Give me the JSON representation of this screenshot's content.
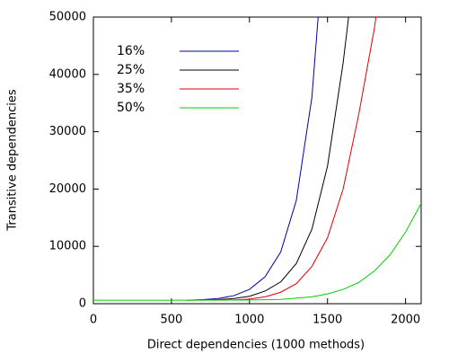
{
  "chart_data": {
    "type": "line",
    "xlabel": "Direct dependencies (1000 methods)",
    "ylabel": "Transitive dependencies",
    "xlim": [
      0,
      2100
    ],
    "xticks": [
      0,
      500,
      1000,
      1500,
      2000
    ],
    "ylim": [
      0,
      50000
    ],
    "yticks": [
      0,
      10000,
      20000,
      30000,
      40000,
      50000
    ],
    "legend": "upper-left",
    "series": [
      {
        "name": "16%",
        "color": "#0000a0",
        "x": [
          600,
          700,
          800,
          900,
          1000,
          1100,
          1200,
          1300,
          1400,
          1440
        ],
        "values": [
          600,
          700,
          900,
          1400,
          2500,
          4700,
          9000,
          18000,
          36000,
          50000
        ]
      },
      {
        "name": "25%",
        "color": "#000000",
        "x": [
          600,
          800,
          900,
          1000,
          1100,
          1200,
          1300,
          1400,
          1500,
          1600,
          1635
        ],
        "values": [
          600,
          700,
          900,
          1300,
          2200,
          3800,
          7000,
          13000,
          24000,
          42000,
          50000
        ]
      },
      {
        "name": "35%",
        "color": "#e00000",
        "x": [
          600,
          900,
          1000,
          1100,
          1200,
          1300,
          1400,
          1500,
          1600,
          1700,
          1800,
          1810
        ],
        "values": [
          600,
          650,
          800,
          1200,
          2000,
          3500,
          6500,
          11500,
          20000,
          33000,
          48000,
          50000
        ]
      },
      {
        "name": "50%",
        "color": "#00d000",
        "x": [
          0,
          500,
          1000,
          1200,
          1400,
          1500,
          1600,
          1700,
          1800,
          1900,
          2000,
          2100
        ],
        "values": [
          600,
          600,
          650,
          750,
          1200,
          1700,
          2500,
          3700,
          5700,
          8500,
          12500,
          17500
        ]
      }
    ]
  }
}
